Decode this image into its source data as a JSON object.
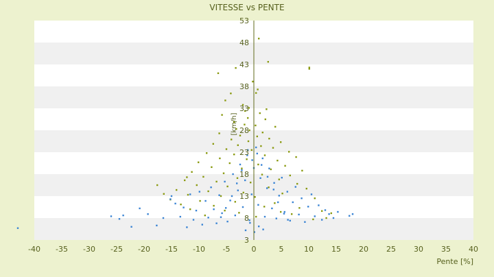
{
  "colors": {
    "background": "#edf2cf",
    "plot_background": "#ffffff",
    "band_alt": "#f0f0f0",
    "axis_text": "#555f1c",
    "zero_axis": "#5f6a1a",
    "series_upper": "#8a9a10",
    "series_lower": "#3a84d4"
  },
  "chart_data": {
    "type": "scatter",
    "title": "VITESSE vs PENTE",
    "xlabel": "Pente [%]",
    "ylabel": "[km/h]",
    "xlim": [
      -40,
      40
    ],
    "ylim": [
      3,
      53
    ],
    "xticks": [
      -40,
      -35,
      -30,
      -25,
      -20,
      -15,
      -10,
      -5,
      0,
      5,
      10,
      15,
      20,
      25,
      30,
      35,
      40
    ],
    "yticks": [
      3,
      8,
      13,
      18,
      23,
      28,
      33,
      38,
      43,
      48,
      53
    ],
    "grid": "horizontal alternating bands",
    "legend": "none",
    "series": [
      {
        "color": "#8a9a10",
        "description": "olive points, upper cloud",
        "points": [
          [
            0.9,
            48.9
          ],
          [
            2.6,
            43.6
          ],
          [
            10.1,
            42.3
          ],
          [
            10.1,
            42.0
          ],
          [
            -3.3,
            42.2
          ],
          [
            -6.5,
            41.0
          ],
          [
            -0.2,
            39.1
          ],
          [
            0.7,
            37.3
          ],
          [
            0.4,
            36.5
          ],
          [
            -4.2,
            36.4
          ],
          [
            -5.2,
            34.8
          ],
          [
            -2.0,
            33.8
          ],
          [
            -0.9,
            33.1
          ],
          [
            2.3,
            32.8
          ],
          [
            -1.6,
            32.4
          ],
          [
            1.1,
            31.9
          ],
          [
            -5.8,
            31.5
          ],
          [
            -1.1,
            30.8
          ],
          [
            2.1,
            30.5
          ],
          [
            -3.6,
            29.9
          ],
          [
            -1.7,
            29.3
          ],
          [
            0.3,
            29.1
          ],
          [
            3.9,
            28.8
          ],
          [
            -3.2,
            28.3
          ],
          [
            -0.8,
            28.0
          ],
          [
            1.6,
            27.5
          ],
          [
            -6.3,
            27.3
          ],
          [
            -2.5,
            26.8
          ],
          [
            0.6,
            26.6
          ],
          [
            2.8,
            26.1
          ],
          [
            -4.1,
            25.9
          ],
          [
            -1.0,
            25.5
          ],
          [
            4.9,
            25.3
          ],
          [
            -7.4,
            24.9
          ],
          [
            -2.9,
            24.6
          ],
          [
            1.3,
            24.4
          ],
          [
            3.5,
            24.0
          ],
          [
            -5.0,
            23.7
          ],
          [
            -0.4,
            23.5
          ],
          [
            6.4,
            23.1
          ],
          [
            -8.6,
            22.8
          ],
          [
            -3.6,
            22.5
          ],
          [
            2.0,
            22.3
          ],
          [
            7.7,
            21.9
          ],
          [
            -6.2,
            21.6
          ],
          [
            -1.3,
            21.4
          ],
          [
            4.3,
            21.1
          ],
          [
            -10.1,
            20.7
          ],
          [
            -4.4,
            20.5
          ],
          [
            0.8,
            20.2
          ],
          [
            5.7,
            19.9
          ],
          [
            -7.7,
            19.6
          ],
          [
            -2.2,
            19.3
          ],
          [
            3.1,
            19.1
          ],
          [
            8.8,
            18.8
          ],
          [
            -11.3,
            18.5
          ],
          [
            -5.5,
            18.2
          ],
          [
            1.5,
            17.9
          ],
          [
            6.6,
            17.7
          ],
          [
            -9.2,
            17.4
          ],
          [
            -3.0,
            17.1
          ],
          [
            4.6,
            16.8
          ],
          [
            -12.6,
            16.6
          ],
          [
            -6.8,
            16.3
          ],
          [
            -0.6,
            16.1
          ],
          [
            7.9,
            15.8
          ],
          [
            -10.4,
            15.5
          ],
          [
            -4.8,
            15.2
          ],
          [
            2.7,
            15.0
          ],
          [
            9.6,
            14.7
          ],
          [
            -14.1,
            14.4
          ],
          [
            -8.3,
            14.1
          ],
          [
            -1.9,
            13.8
          ],
          [
            5.2,
            13.6
          ],
          [
            -12.0,
            13.3
          ],
          [
            -6.0,
            13.0
          ],
          [
            0.2,
            12.8
          ],
          [
            11.1,
            12.5
          ],
          [
            -15.2,
            12.2
          ],
          [
            -9.8,
            11.9
          ],
          [
            -3.4,
            11.7
          ],
          [
            3.8,
            11.4
          ],
          [
            -13.3,
            11.1
          ],
          [
            -7.3,
            10.8
          ],
          [
            1.9,
            10.6
          ],
          [
            8.3,
            10.3
          ],
          [
            -11.6,
            10.0
          ],
          [
            -5.3,
            9.7
          ],
          [
            4.9,
            9.4
          ],
          [
            -2.7,
            9.2
          ],
          [
            6.9,
            8.9
          ],
          [
            -8.9,
            8.6
          ],
          [
            0.4,
            8.3
          ],
          [
            13.2,
            8.0
          ],
          [
            10.8,
            7.7
          ],
          [
            -17.6,
            15.5
          ],
          [
            -16.4,
            13.5
          ],
          [
            -12.2,
            17.3
          ],
          [
            12.4,
            9.6
          ],
          [
            14.1,
            9.1
          ]
        ]
      },
      {
        "color": "#3a84d4",
        "description": "blue points, lower cloud",
        "points": [
          [
            -43.0,
            5.7
          ],
          [
            -26.0,
            8.4
          ],
          [
            -24.5,
            7.8
          ],
          [
            -23.8,
            8.6
          ],
          [
            -22.3,
            6.0
          ],
          [
            -19.3,
            8.9
          ],
          [
            -20.8,
            10.2
          ],
          [
            -17.7,
            6.3
          ],
          [
            -16.5,
            8.0
          ],
          [
            -15.2,
            12.3
          ],
          [
            -15.0,
            13.0
          ],
          [
            -14.3,
            11.3
          ],
          [
            -13.4,
            8.3
          ],
          [
            -12.8,
            10.4
          ],
          [
            -12.2,
            5.9
          ],
          [
            -11.6,
            13.4
          ],
          [
            -11.0,
            7.6
          ],
          [
            -10.5,
            9.7
          ],
          [
            -9.9,
            14.0
          ],
          [
            -9.4,
            6.5
          ],
          [
            -8.8,
            11.9
          ],
          [
            -8.3,
            8.1
          ],
          [
            -7.8,
            15.0
          ],
          [
            -7.3,
            10.0
          ],
          [
            -6.8,
            6.8
          ],
          [
            -6.3,
            13.2
          ],
          [
            -5.8,
            9.1
          ],
          [
            -5.3,
            16.3
          ],
          [
            -4.8,
            7.2
          ],
          [
            -4.3,
            12.0
          ],
          [
            -3.8,
            18.0
          ],
          [
            -3.4,
            8.6
          ],
          [
            -2.9,
            14.3
          ],
          [
            -2.5,
            20.2
          ],
          [
            -2.0,
            10.5
          ],
          [
            -1.6,
            16.6
          ],
          [
            -1.2,
            22.3
          ],
          [
            -0.8,
            7.5
          ],
          [
            -0.4,
            13.4
          ],
          [
            0.0,
            19.4
          ],
          [
            0.4,
            24.1
          ],
          [
            0.8,
            11.0
          ],
          [
            1.2,
            17.1
          ],
          [
            1.6,
            21.6
          ],
          [
            2.0,
            8.3
          ],
          [
            2.4,
            14.8
          ],
          [
            2.8,
            19.3
          ],
          [
            3.3,
            10.2
          ],
          [
            3.7,
            16.0
          ],
          [
            4.1,
            7.9
          ],
          [
            4.6,
            13.1
          ],
          [
            5.1,
            17.2
          ],
          [
            5.6,
            9.4
          ],
          [
            6.1,
            14.0
          ],
          [
            6.6,
            7.4
          ],
          [
            7.1,
            11.6
          ],
          [
            7.6,
            15.1
          ],
          [
            8.2,
            8.8
          ],
          [
            8.7,
            12.5
          ],
          [
            9.3,
            7.1
          ],
          [
            9.9,
            10.6
          ],
          [
            10.5,
            13.4
          ],
          [
            11.1,
            8.4
          ],
          [
            11.8,
            10.9
          ],
          [
            12.4,
            7.6
          ],
          [
            13.0,
            9.8
          ],
          [
            13.7,
            8.9
          ],
          [
            14.5,
            8.0
          ],
          [
            15.3,
            9.4
          ],
          [
            17.4,
            8.5
          ],
          [
            18.0,
            8.9
          ],
          [
            -1.1,
            23.5
          ],
          [
            0.6,
            22.7
          ],
          [
            -0.3,
            21.2
          ],
          [
            1.4,
            20.1
          ],
          [
            -2.2,
            18.9
          ],
          [
            2.5,
            17.4
          ],
          [
            -3.1,
            15.9
          ],
          [
            3.6,
            14.5
          ],
          [
            -4.0,
            13.0
          ],
          [
            4.4,
            11.6
          ],
          [
            -5.1,
            10.3
          ],
          [
            5.5,
            9.0
          ],
          [
            -6.0,
            8.2
          ],
          [
            6.2,
            7.6
          ],
          [
            -0.7,
            6.9
          ],
          [
            0.9,
            6.1
          ],
          [
            1.7,
            5.4
          ],
          [
            -1.5,
            5.2
          ],
          [
            0.1,
            4.8
          ]
        ]
      }
    ]
  }
}
